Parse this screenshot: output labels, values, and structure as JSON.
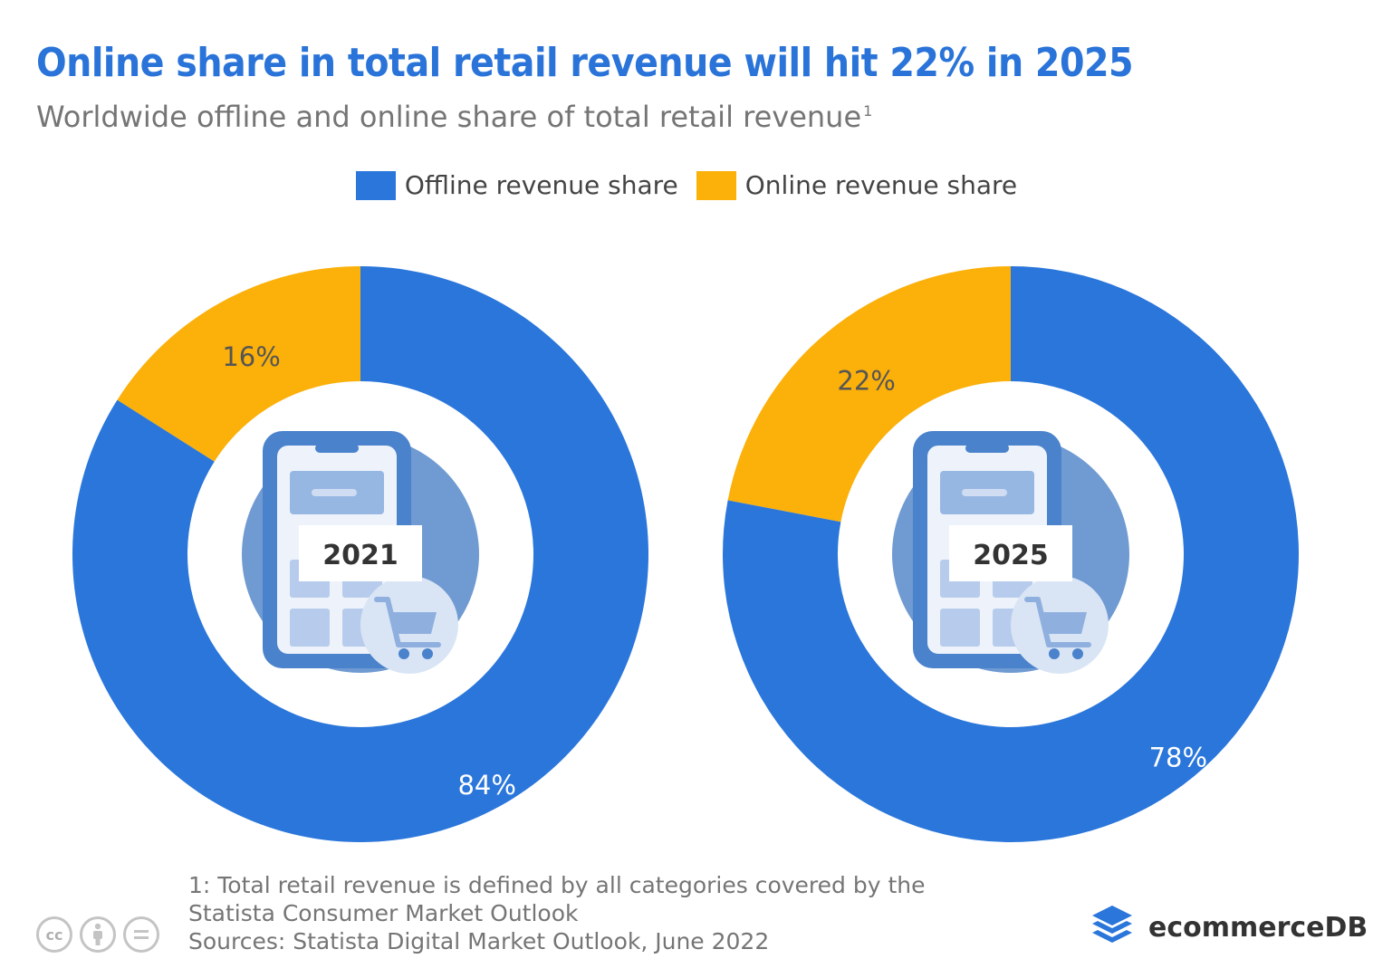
{
  "title": "Online share in total retail revenue will hit 22% in 2025",
  "subtitle": "Worldwide offline and online share of total retail revenue",
  "subtitle_sup": "1",
  "legend": [
    {
      "label": "Offline revenue share",
      "color": "#2a76db"
    },
    {
      "label": "Online revenue share",
      "color": "#fbb00a"
    }
  ],
  "chart_data": [
    {
      "type": "pie",
      "center_label": "2021",
      "title": "",
      "series": [
        {
          "name": "Offline revenue share",
          "value": 84,
          "label": "84%",
          "color": "#2a76db"
        },
        {
          "name": "Online revenue share",
          "value": 16,
          "label": "16%",
          "color": "#fbb00a"
        }
      ]
    },
    {
      "type": "pie",
      "center_label": "2025",
      "title": "",
      "series": [
        {
          "name": "Offline revenue share",
          "value": 78,
          "label": "78%",
          "color": "#2a76db"
        },
        {
          "name": "Online revenue share",
          "value": 22,
          "label": "22%",
          "color": "#fbb00a"
        }
      ]
    }
  ],
  "footnote": {
    "line1": "1: Total retail revenue is defined by all categories covered by the",
    "line2": "Statista Consumer Market Outlook",
    "sources": "Sources: Statista Digital Market Outlook, June 2022"
  },
  "license_icons": [
    "cc-icon",
    "by-icon",
    "nd-icon"
  ],
  "license_text": {
    "cc": "cc"
  },
  "brand": {
    "name": "ecommerceDB",
    "icon": "layers-logo-icon"
  }
}
